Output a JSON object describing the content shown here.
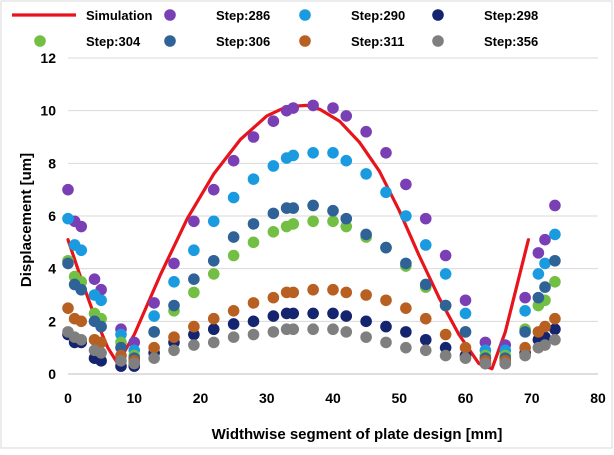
{
  "chart_data": {
    "type": "scatter",
    "title": "",
    "xlabel": "Widthwise segment of plate design [mm]",
    "ylabel": "Displacement [um]",
    "xlim": [
      0,
      80
    ],
    "ylim": [
      0,
      12
    ],
    "x_ticks": [
      0,
      10,
      20,
      30,
      40,
      50,
      60,
      70,
      80
    ],
    "y_ticks": [
      0,
      2,
      4,
      6,
      8,
      10,
      12
    ],
    "grid": "horizontal",
    "legend_position": "top",
    "simulation": {
      "name": "Simulation",
      "color": "#e8141b",
      "x": [
        0,
        2,
        4,
        6,
        7.5,
        10,
        14,
        18,
        22,
        26,
        30,
        33,
        36,
        38,
        41,
        44,
        47,
        50,
        53,
        56,
        59,
        62,
        64,
        66,
        68,
        69.5
      ],
      "y": [
        5.1,
        3.6,
        2.2,
        1.0,
        0.4,
        1.5,
        3.8,
        5.9,
        7.6,
        8.9,
        9.8,
        10.15,
        10.2,
        10.05,
        9.6,
        8.8,
        7.7,
        6.2,
        4.5,
        2.9,
        1.5,
        0.4,
        0.2,
        1.6,
        3.6,
        5.1
      ]
    },
    "x": [
      0,
      1,
      2,
      4,
      5,
      8,
      10,
      13,
      16,
      19,
      22,
      25,
      28,
      31,
      33,
      34,
      37,
      40,
      42,
      45,
      48,
      51,
      54,
      57,
      60,
      63,
      66,
      69,
      71,
      72,
      73.5
    ],
    "series": [
      {
        "name": "Step:286",
        "color": "#7b3fb5",
        "values": [
          7.0,
          5.8,
          5.6,
          3.6,
          3.2,
          1.7,
          1.2,
          2.7,
          4.2,
          5.8,
          7.0,
          8.1,
          9.0,
          9.6,
          10.0,
          10.1,
          10.2,
          10.1,
          9.8,
          9.2,
          8.4,
          7.2,
          5.9,
          4.5,
          2.8,
          1.2,
          1.1,
          2.9,
          4.6,
          5.1,
          6.4
        ]
      },
      {
        "name": "Step:290",
        "color": "#1a9be0",
        "values": [
          5.9,
          4.9,
          4.7,
          3.0,
          2.8,
          1.5,
          0.9,
          2.2,
          3.5,
          4.7,
          5.8,
          6.7,
          7.4,
          7.9,
          8.2,
          8.3,
          8.4,
          8.4,
          8.1,
          7.6,
          6.9,
          6.0,
          4.9,
          3.8,
          2.3,
          0.9,
          0.9,
          2.4,
          3.8,
          4.2,
          5.3
        ]
      },
      {
        "name": "Step:298",
        "color": "#15246e",
        "values": [
          1.5,
          1.2,
          1.2,
          0.6,
          0.5,
          0.3,
          0.3,
          0.8,
          1.2,
          1.5,
          1.7,
          1.9,
          2.0,
          2.2,
          2.3,
          2.3,
          2.3,
          2.3,
          2.2,
          2.0,
          1.8,
          1.6,
          1.3,
          1.0,
          0.7,
          0.4,
          0.4,
          0.8,
          1.3,
          1.4,
          1.7
        ]
      },
      {
        "name": "Step:304",
        "color": "#72bf44",
        "values": [
          4.3,
          3.7,
          3.5,
          2.3,
          2.1,
          1.2,
          0.7,
          1.6,
          2.4,
          3.1,
          3.8,
          4.5,
          5.0,
          5.4,
          5.6,
          5.7,
          5.8,
          5.8,
          5.6,
          5.2,
          4.8,
          4.1,
          3.3,
          2.6,
          1.6,
          0.7,
          0.7,
          1.7,
          2.6,
          2.8,
          3.5
        ]
      },
      {
        "name": "Step:306",
        "color": "#2f6296",
        "values": [
          4.2,
          3.4,
          3.2,
          2.0,
          1.8,
          1.0,
          0.6,
          1.6,
          2.6,
          3.6,
          4.3,
          5.2,
          5.7,
          6.1,
          6.3,
          6.3,
          6.4,
          6.2,
          5.9,
          5.3,
          4.8,
          4.2,
          3.4,
          2.6,
          1.6,
          0.6,
          0.6,
          1.6,
          2.9,
          3.3,
          4.3
        ]
      },
      {
        "name": "Step:311",
        "color": "#b85f22",
        "values": [
          2.5,
          2.1,
          2.0,
          1.3,
          1.2,
          0.7,
          0.5,
          1.0,
          1.4,
          1.8,
          2.1,
          2.4,
          2.7,
          2.9,
          3.1,
          3.1,
          3.2,
          3.2,
          3.1,
          3.0,
          2.8,
          2.5,
          2.1,
          1.5,
          1.0,
          0.5,
          0.5,
          1.0,
          1.6,
          1.8,
          2.1
        ]
      },
      {
        "name": "Step:356",
        "color": "#7f7f7f",
        "values": [
          1.6,
          1.4,
          1.3,
          0.9,
          0.8,
          0.5,
          0.4,
          0.6,
          0.9,
          1.1,
          1.2,
          1.4,
          1.5,
          1.6,
          1.7,
          1.7,
          1.7,
          1.7,
          1.6,
          1.4,
          1.2,
          1.0,
          0.9,
          0.7,
          0.6,
          0.4,
          0.4,
          0.7,
          1.0,
          1.1,
          1.3
        ]
      }
    ]
  }
}
